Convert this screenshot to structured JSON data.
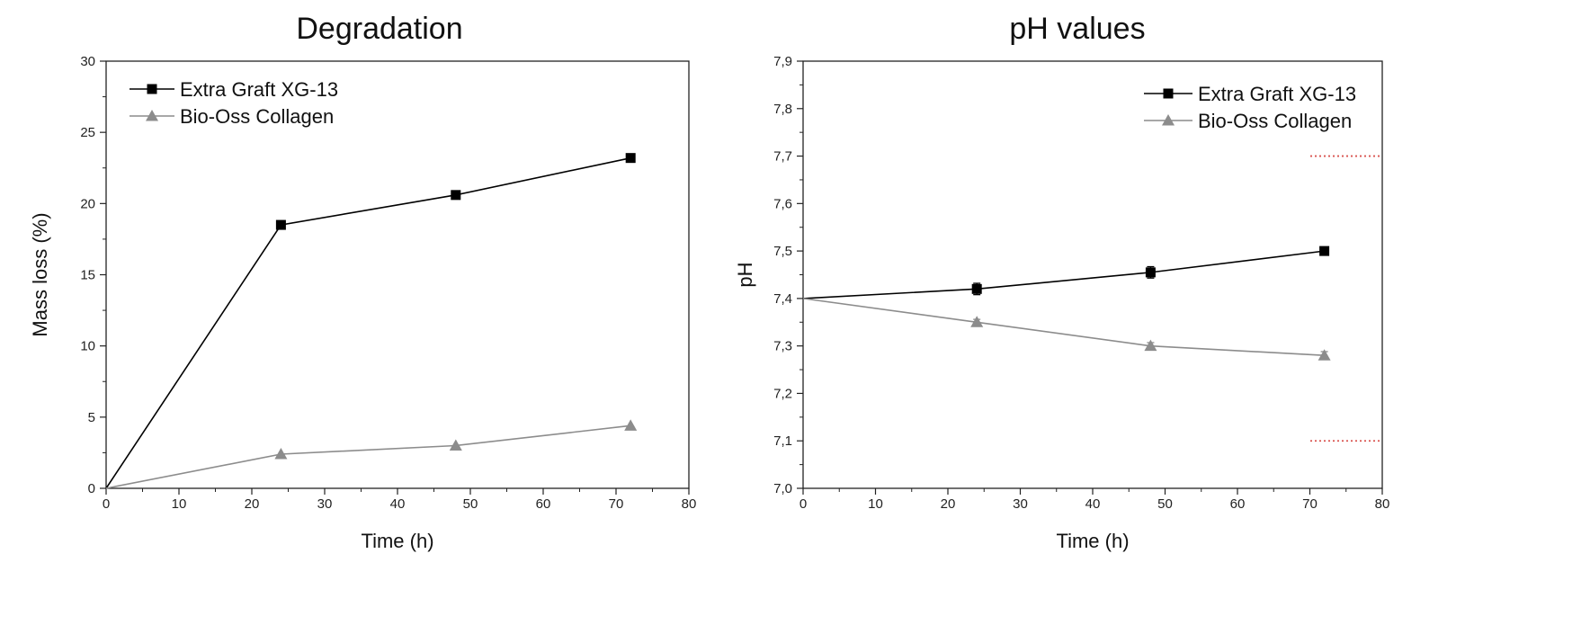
{
  "chart_data": [
    {
      "type": "line",
      "title": "Degradation",
      "xlabel": "Time (h)",
      "ylabel": "Mass loss (%)",
      "xlim": [
        0,
        80
      ],
      "ylim": [
        0,
        30
      ],
      "xticks": [
        "0",
        "10",
        "20",
        "30",
        "40",
        "50",
        "60",
        "70",
        "80"
      ],
      "yticks": [
        "0",
        "5",
        "10",
        "15",
        "20",
        "25",
        "30"
      ],
      "legend_position": "top-left",
      "grid": false,
      "series": [
        {
          "name": "Extra Graft XG-13",
          "color": "#000000",
          "marker": "square",
          "x": [
            0,
            24,
            48,
            72
          ],
          "y": [
            0,
            18.5,
            20.6,
            23.2
          ]
        },
        {
          "name": "Bio-Oss Collagen",
          "color": "#8c8c8c",
          "marker": "triangle",
          "x": [
            0,
            24,
            48,
            72
          ],
          "y": [
            0,
            2.4,
            3.0,
            4.4
          ]
        }
      ]
    },
    {
      "type": "line",
      "title": "pH values",
      "xlabel": "Time (h)",
      "ylabel": "pH",
      "xlim": [
        0,
        80
      ],
      "ylim": [
        7.0,
        7.9
      ],
      "xticks": [
        "0",
        "10",
        "20",
        "30",
        "40",
        "50",
        "60",
        "70",
        "80"
      ],
      "yticks": [
        "7,0",
        "7,1",
        "7,2",
        "7,3",
        "7,4",
        "7,5",
        "7,6",
        "7,7",
        "7,8",
        "7,9"
      ],
      "legend_position": "top-right",
      "grid": false,
      "reference_lines": [
        7.7,
        7.1
      ],
      "reference_line_color": "#d9534f",
      "series": [
        {
          "name": "Extra Graft XG-13",
          "color": "#000000",
          "marker": "square",
          "x": [
            0,
            24,
            48,
            72
          ],
          "y": [
            7.4,
            7.42,
            7.455,
            7.5
          ],
          "error": [
            0,
            0.012,
            0.012,
            0.005
          ]
        },
        {
          "name": "Bio-Oss Collagen",
          "color": "#8c8c8c",
          "marker": "triangle",
          "x": [
            0,
            24,
            48,
            72
          ],
          "y": [
            7.4,
            7.35,
            7.3,
            7.28
          ],
          "error": [
            0,
            0.006,
            0.007,
            0.008
          ]
        }
      ]
    }
  ]
}
